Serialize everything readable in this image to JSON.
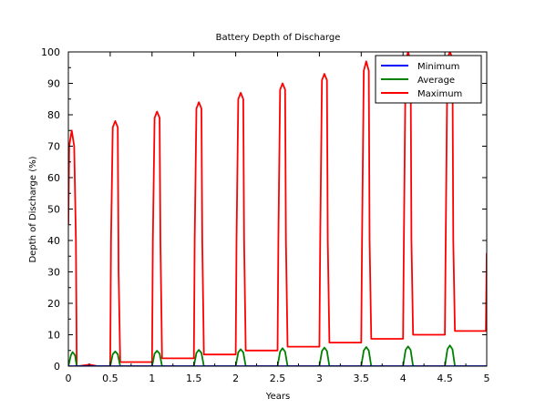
{
  "chart_data": {
    "type": "line",
    "title": "Battery Depth of Discharge",
    "xlabel": "Years",
    "ylabel": "Depth of Discharge (%)",
    "xlim": [
      0,
      5
    ],
    "ylim": [
      0,
      100
    ],
    "x_ticks": [
      "0",
      "0.5",
      "1",
      "1.5",
      "2",
      "2.5",
      "3",
      "3.5",
      "4",
      "4.5",
      "5"
    ],
    "y_ticks": [
      "0",
      "10",
      "20",
      "30",
      "40",
      "50",
      "60",
      "70",
      "80",
      "90",
      "100"
    ],
    "grid": false,
    "legend_position": "top-right",
    "series": [
      {
        "name": "Minimum",
        "color": "#0000ff",
        "x": [
          0,
          5
        ],
        "y": [
          0,
          0
        ]
      },
      {
        "name": "Average",
        "color": "#008000",
        "x": [
          0,
          0.03,
          0.05,
          0.08,
          0.1,
          0.5,
          0.53,
          0.56,
          0.59,
          0.62,
          1.0,
          1.03,
          1.06,
          1.09,
          1.12,
          1.5,
          1.53,
          1.56,
          1.59,
          1.62,
          2.0,
          2.03,
          2.06,
          2.09,
          2.12,
          2.5,
          2.53,
          2.56,
          2.59,
          2.62,
          3.0,
          3.03,
          3.06,
          3.09,
          3.12,
          3.5,
          3.53,
          3.56,
          3.59,
          3.62,
          4.0,
          4.03,
          4.06,
          4.09,
          4.12,
          4.5,
          4.53,
          4.56,
          4.59,
          4.62,
          5.0
        ],
        "y": [
          0,
          3.5,
          4.5,
          3.5,
          0,
          0,
          3.8,
          4.7,
          3.8,
          0,
          0,
          4.0,
          4.9,
          4.0,
          0,
          0,
          4.2,
          5.2,
          4.2,
          0,
          0,
          4.4,
          5.4,
          4.4,
          0,
          0,
          4.6,
          5.7,
          4.6,
          0,
          0,
          4.8,
          5.9,
          4.8,
          0,
          0,
          5.0,
          6.1,
          5.0,
          0,
          0,
          5.2,
          6.3,
          5.2,
          0,
          0,
          5.4,
          6.6,
          5.4,
          0,
          0
        ]
      },
      {
        "name": "Maximum",
        "color": "#ff0000",
        "x": [
          0,
          0.01,
          0.04,
          0.07,
          0.09,
          0.1,
          0.12,
          0.25,
          0.35,
          0.5,
          0.51,
          0.53,
          0.56,
          0.59,
          0.6,
          0.62,
          1.0,
          1.01,
          1.03,
          1.06,
          1.09,
          1.1,
          1.12,
          1.5,
          1.51,
          1.53,
          1.56,
          1.59,
          1.6,
          1.62,
          2.0,
          2.01,
          2.03,
          2.06,
          2.09,
          2.1,
          2.12,
          2.5,
          2.51,
          2.53,
          2.56,
          2.59,
          2.6,
          2.62,
          3.0,
          3.01,
          3.03,
          3.06,
          3.09,
          3.1,
          3.12,
          3.5,
          3.51,
          3.53,
          3.56,
          3.59,
          3.6,
          3.62,
          4.0,
          4.01,
          4.03,
          4.06,
          4.09,
          4.1,
          4.12,
          4.5,
          4.51,
          4.53,
          4.56,
          4.59,
          4.6,
          4.62,
          4.99,
          5.0
        ],
        "y": [
          45,
          70,
          75,
          70,
          40,
          0,
          0,
          0.5,
          0,
          0,
          40,
          76,
          78,
          76,
          30,
          1.3,
          1.3,
          40,
          79,
          81,
          79,
          40,
          2.5,
          2.5,
          40,
          82,
          84,
          82,
          40,
          3.7,
          3.7,
          40,
          85,
          87,
          85,
          40,
          5.0,
          5.0,
          40,
          88,
          90,
          88,
          40,
          6.2,
          6.2,
          40,
          91,
          93,
          91,
          40,
          7.5,
          7.5,
          40,
          94,
          97,
          94,
          40,
          8.7,
          8.7,
          40,
          97,
          100,
          97,
          40,
          10.0,
          10.0,
          40,
          98,
          100,
          98,
          40,
          11.2,
          11.2,
          36
        ]
      }
    ]
  }
}
